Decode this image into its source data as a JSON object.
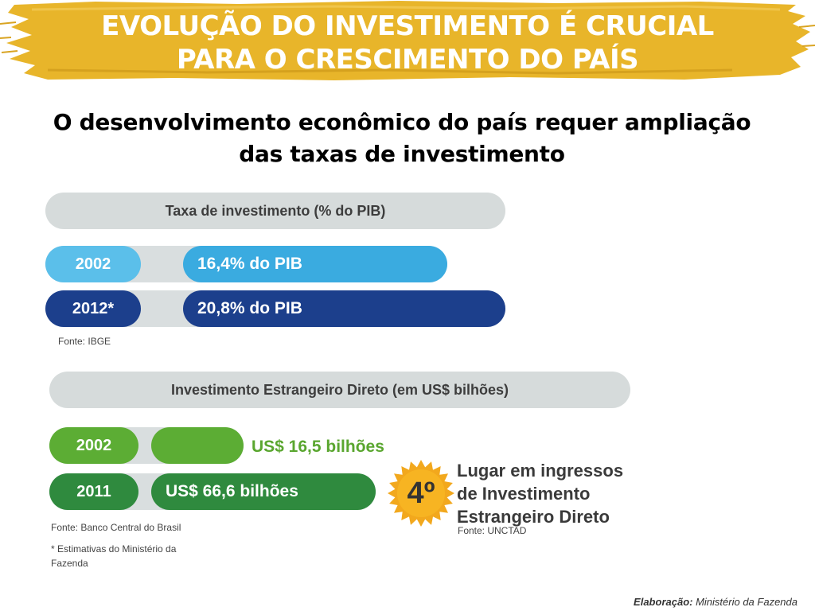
{
  "banner": {
    "title_line1": "EVOLUÇÃO DO INVESTIMENTO É CRUCIAL",
    "title_line2": "PARA O CRESCIMENTO DO PAÍS",
    "color": "#e8b52a"
  },
  "subtitle": {
    "line1": "O desenvolvimento econômico do país requer ampliação",
    "line2": "das taxas de investimento"
  },
  "investment_rate": {
    "header": "Taxa de investimento (% do PIB)",
    "rows": [
      {
        "year": "2002",
        "value_label": "16,4% do PIB",
        "value": 16.4,
        "color": "#40b1e3"
      },
      {
        "year": "2012*",
        "value_label": "20,8% do PIB",
        "value": 20.8,
        "color": "#1c3f8c"
      }
    ],
    "source": "Fonte: IBGE"
  },
  "fdi": {
    "header": "Investimento Estrangeiro Direto (em US$ bilhões)",
    "rows": [
      {
        "year": "2002",
        "value_label": "US$ 16,5 bilhões",
        "value": 16.5,
        "color": "#5cad34"
      },
      {
        "year": "2011",
        "value_label": "US$ 66,6 bilhões",
        "value": 66.6,
        "color": "#2f8a3e"
      }
    ],
    "source": "Fonte: Banco Central do Brasil",
    "note_line1": "* Estimativas do Ministério da",
    "note_line2": "Fazenda"
  },
  "rank": {
    "badge": "4º",
    "line1": "Lugar em ingressos",
    "line2": "de Investimento",
    "line3": "Estrangeiro Direto",
    "source": "Fonte: UNCTAD",
    "badge_color": "#f2a81d"
  },
  "credit": {
    "label": "Elaboração:",
    "text": "Ministério da Fazenda"
  }
}
